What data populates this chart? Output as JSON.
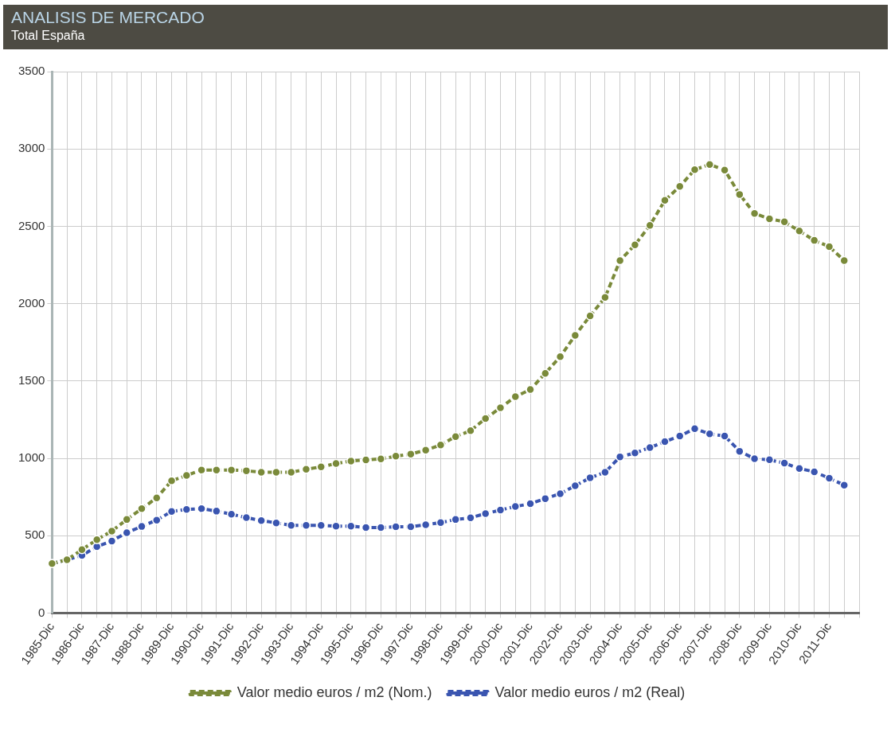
{
  "chart_data": {
    "type": "line",
    "title": "ANALISIS DE MERCADO",
    "subtitle": "Total España",
    "categories": [
      "1985-Dic",
      null,
      "1986-Dic",
      null,
      "1987-Dic",
      null,
      "1988-Dic",
      null,
      "1989-Dic",
      null,
      "1990-Dic",
      null,
      "1991-Dic",
      null,
      "1992-Dic",
      null,
      "1993-Dic",
      null,
      "1994-Dic",
      null,
      "1995-Dic",
      null,
      "1996-Dic",
      null,
      "1997-Dic",
      null,
      "1998-Dic",
      null,
      "1999-Dic",
      null,
      "2000-Dic",
      null,
      "2001-Dic",
      null,
      "2002-Dic",
      null,
      "2003-Dic",
      null,
      "2004-Dic",
      null,
      "2005-Dic",
      null,
      "2006-Dic",
      null,
      "2007-Dic",
      null,
      "2008-Dic",
      null,
      "2009-Dic",
      null,
      "2010-Dic",
      null,
      "2011-Dic",
      null,
      null
    ],
    "series": [
      {
        "name": "Valor medio euros / m2 (Nom.)",
        "color": "#7a8a3a",
        "values": [
          320,
          345,
          410,
          475,
          530,
          605,
          675,
          745,
          855,
          890,
          925,
          925,
          925,
          920,
          910,
          910,
          910,
          930,
          945,
          967,
          983,
          990,
          997,
          1014,
          1028,
          1053,
          1087,
          1141,
          1179,
          1258,
          1327,
          1399,
          1445,
          1550,
          1657,
          1795,
          1921,
          2040,
          2279,
          2380,
          2506,
          2668,
          2758,
          2866,
          2900,
          2864,
          2706,
          2583,
          2549,
          2529,
          2470,
          2409,
          2369,
          2279,
          null
        ]
      },
      {
        "name": "Valor medio euros / m2 (Real)",
        "color": "#3a55b0",
        "values": [
          320,
          345,
          373,
          430,
          466,
          520,
          560,
          601,
          657,
          670,
          675,
          659,
          639,
          617,
          598,
          583,
          567,
          567,
          567,
          562,
          562,
          553,
          553,
          558,
          558,
          571,
          585,
          605,
          616,
          643,
          666,
          689,
          707,
          740,
          772,
          823,
          875,
          910,
          1010,
          1035,
          1070,
          1108,
          1145,
          1192,
          1158,
          1145,
          1046,
          998,
          991,
          969,
          935,
          913,
          872,
          827,
          null
        ]
      }
    ],
    "ylim": [
      0,
      3500
    ],
    "yticks": [
      0,
      500,
      1000,
      1500,
      2000,
      2500,
      3000,
      3500
    ],
    "grid": true,
    "legend": "bottom",
    "marker": "circle",
    "line_style": "dashed"
  }
}
